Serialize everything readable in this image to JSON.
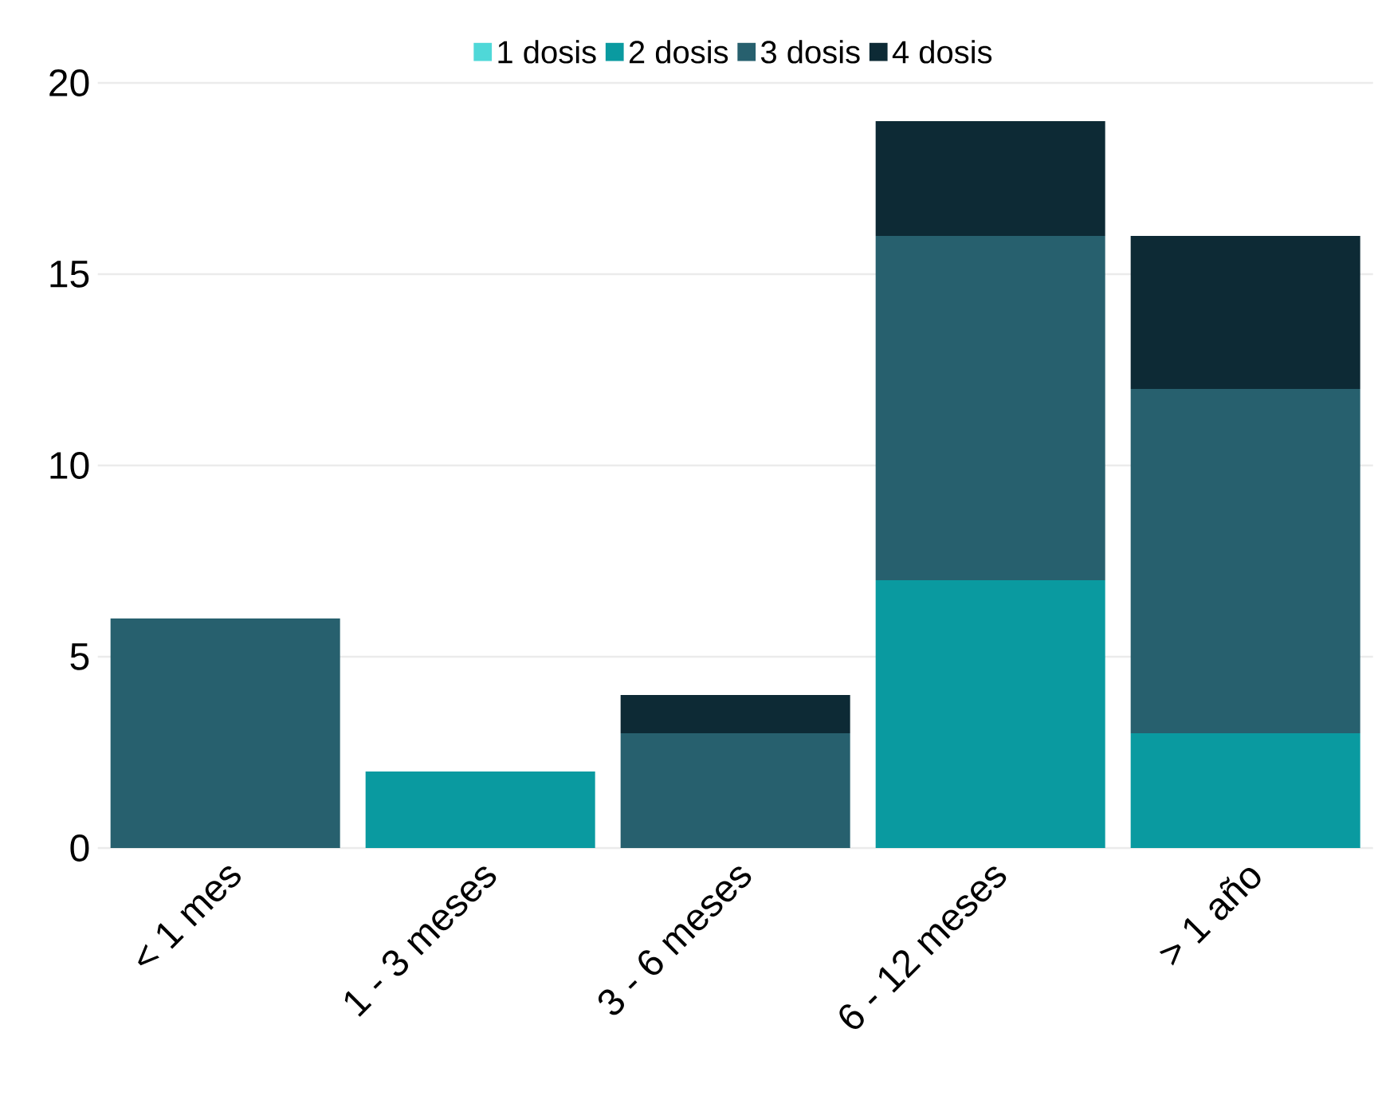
{
  "chart_data": {
    "type": "bar",
    "stacked": true,
    "categories": [
      "< 1 mes",
      "1 - 3 meses",
      "3 - 6 meses",
      "6 - 12 meses",
      "> 1 año"
    ],
    "series": [
      {
        "name": "1 dosis",
        "color": "#4fd8d8",
        "values": [
          0,
          0,
          0,
          0,
          0
        ]
      },
      {
        "name": "2 dosis",
        "color": "#0a9aa0",
        "values": [
          0,
          2,
          0,
          7,
          3
        ]
      },
      {
        "name": "3 dosis",
        "color": "#27606e",
        "values": [
          6,
          0,
          3,
          9,
          9
        ]
      },
      {
        "name": "4 dosis",
        "color": "#0d2a35",
        "values": [
          0,
          0,
          1,
          3,
          4
        ]
      }
    ],
    "ylim": [
      0,
      20
    ],
    "yticks": [
      0,
      5,
      10,
      15,
      20
    ],
    "grid": "y",
    "legend": "top"
  }
}
